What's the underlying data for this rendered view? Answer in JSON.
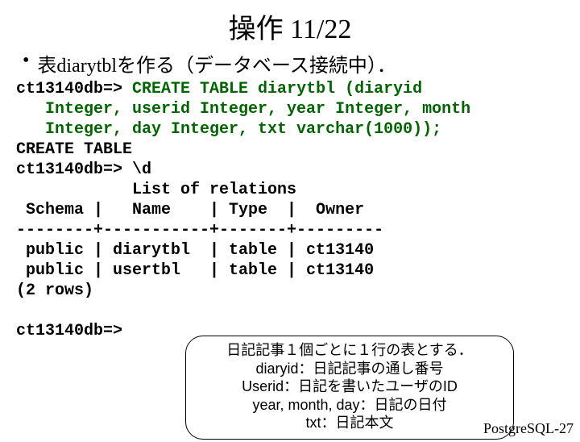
{
  "title": "操作 11/22",
  "bullet": "表diarytblを作る（データベース接続中）．",
  "code": {
    "l1a": "ct13140db=> ",
    "l1b": "CREATE TABLE diarytbl (diaryid",
    "l2": "   Integer, userid Integer, year Integer, month",
    "l3": "   Integer, day Integer, txt varchar(1000));",
    "l4": "CREATE TABLE",
    "l5": "ct13140db=> \\d",
    "l6": "            List of relations",
    "l7": " Schema |   Name    | Type  |  Owner",
    "l8": "--------+-----------+-------+---------",
    "l9": " public | diarytbl  | table | ct13140",
    "l10": " public | usertbl   | table | ct13140",
    "l11": "(2 rows)",
    "l12": "",
    "l13": "ct13140db=>"
  },
  "callout": {
    "c1": "日記記事１個ごとに１行の表とする．",
    "c2": "diaryid：日記記事の通し番号",
    "c3": "Userid：日記を書いたユーザのID",
    "c4": "year, month, day：日記の日付",
    "c5": "txt：日記本文"
  },
  "footer": "PostgreSQL-27",
  "colors": {
    "sql": "#006400",
    "text": "#000000",
    "bg": "#ffffff"
  },
  "fontsize": {
    "title": 34,
    "bullet": 24,
    "code": 20,
    "callout": 18,
    "footer": 18
  }
}
